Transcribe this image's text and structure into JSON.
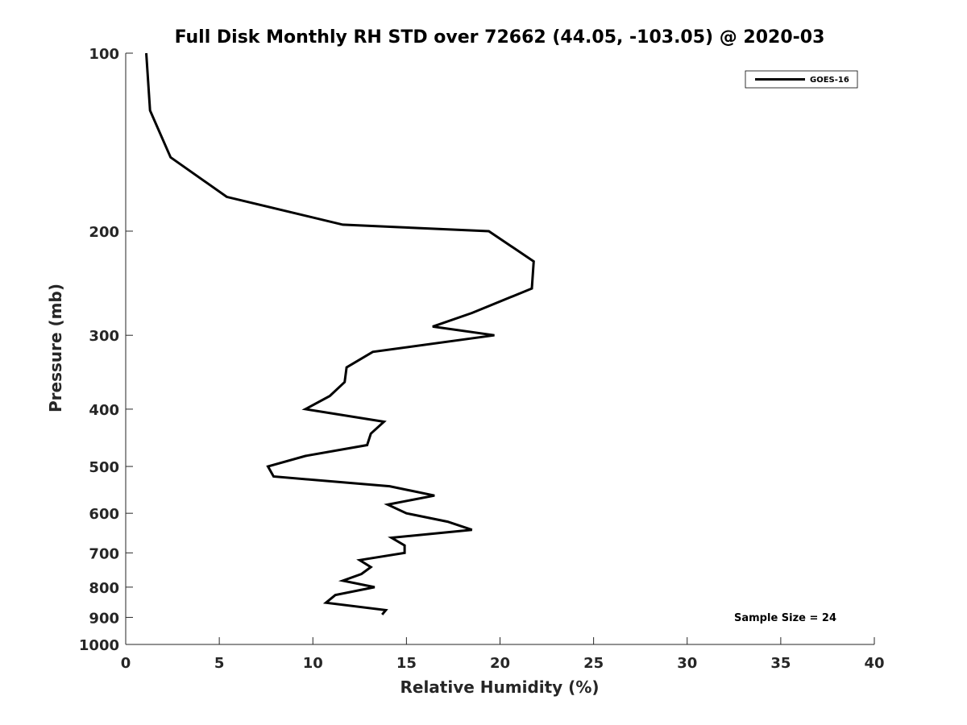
{
  "chart_data": {
    "type": "line",
    "title": "Full Disk Monthly RH STD over 72662 (44.05, -103.05) @ 2020-03",
    "xlabel": "Relative Humidity (%)",
    "ylabel": "Pressure (mb)",
    "xlim": [
      0,
      40
    ],
    "ylim": [
      100,
      1000
    ],
    "y_scale": "log",
    "y_reversed": true,
    "xticks": [
      0,
      5,
      10,
      15,
      20,
      25,
      30,
      35,
      40
    ],
    "yticks": [
      100,
      200,
      300,
      400,
      500,
      600,
      700,
      800,
      900,
      1000
    ],
    "grid": false,
    "legend": {
      "location": "top-right",
      "entries": [
        "GOES-16"
      ]
    },
    "annotation": "Sample Size = 24",
    "series": [
      {
        "name": "GOES-16",
        "color": "#000000",
        "points": [
          [
            1.1,
            100
          ],
          [
            1.3,
            125
          ],
          [
            2.4,
            150
          ],
          [
            5.4,
            175
          ],
          [
            11.6,
            195
          ],
          [
            19.4,
            200
          ],
          [
            21.8,
            225
          ],
          [
            21.7,
            250
          ],
          [
            18.5,
            275
          ],
          [
            16.4,
            290
          ],
          [
            19.7,
            300
          ],
          [
            13.2,
            320
          ],
          [
            11.8,
            340
          ],
          [
            11.7,
            360
          ],
          [
            10.9,
            380
          ],
          [
            9.6,
            400
          ],
          [
            13.8,
            420
          ],
          [
            13.1,
            440
          ],
          [
            12.9,
            460
          ],
          [
            9.6,
            480
          ],
          [
            7.6,
            500
          ],
          [
            7.9,
            520
          ],
          [
            14.1,
            540
          ],
          [
            16.5,
            560
          ],
          [
            14.0,
            580
          ],
          [
            15.0,
            600
          ],
          [
            17.2,
            620
          ],
          [
            18.5,
            640
          ],
          [
            14.2,
            660
          ],
          [
            14.9,
            680
          ],
          [
            14.9,
            700
          ],
          [
            12.5,
            720
          ],
          [
            13.1,
            740
          ],
          [
            12.6,
            760
          ],
          [
            11.6,
            780
          ],
          [
            13.3,
            800
          ],
          [
            11.2,
            825
          ],
          [
            10.7,
            850
          ],
          [
            13.9,
            875
          ],
          [
            13.7,
            890
          ]
        ]
      }
    ]
  }
}
